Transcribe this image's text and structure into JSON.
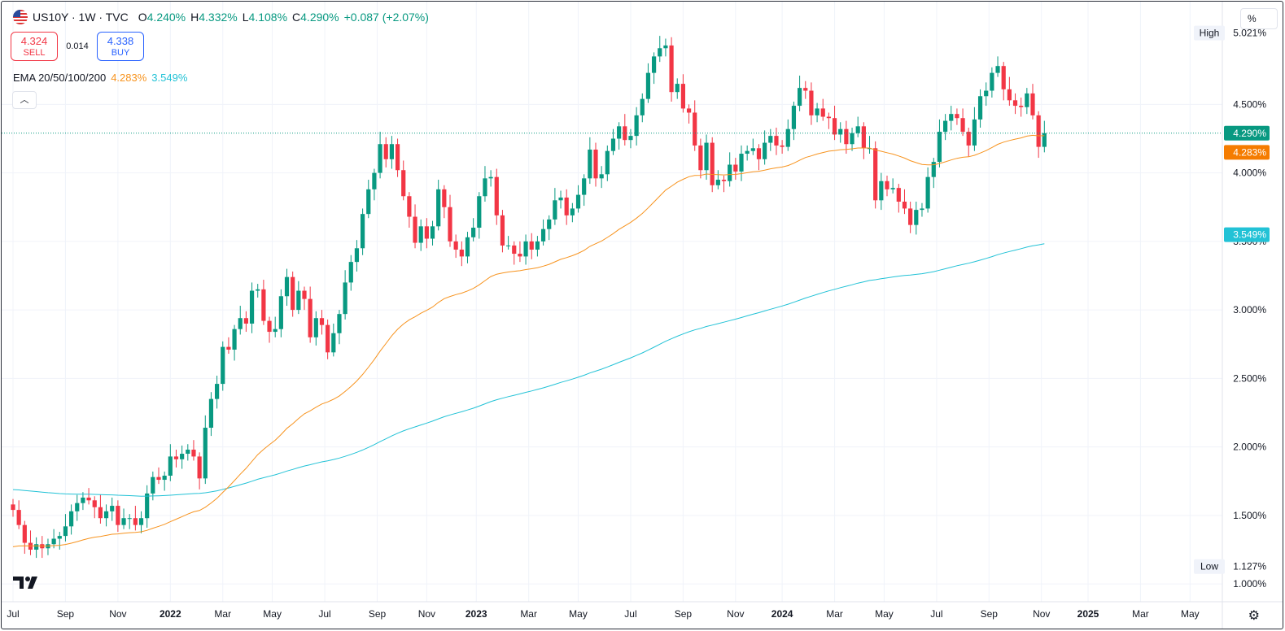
{
  "header": {
    "symbol": "US10Y · 1W · TVC",
    "open_key": "O",
    "open": "4.240%",
    "high_key": "H",
    "high": "4.332%",
    "low_key": "L",
    "low": "4.108%",
    "close_key": "C",
    "close": "4.290%",
    "change": "+0.087 (+2.07%)"
  },
  "trade": {
    "sell_price": "4.324",
    "sell_label": "SELL",
    "spread": "0.014",
    "buy_price": "4.338",
    "buy_label": "BUY"
  },
  "ema_label": "EMA 20/50/100/200",
  "ema_values": {
    "orange": "4.283%",
    "cyan": "3.549%"
  },
  "collapse_icon": "chevron-up-icon",
  "collapse_glyph": "︿",
  "scale_button": "%",
  "settings_glyph": "⚙",
  "colors": {
    "up": "#089981",
    "down": "#f23645",
    "ema_orange": "#f7931e",
    "ema_cyan": "#22c2d6",
    "last_price_bg": "#089981",
    "ema_orange_tag_bg": "#f57c00",
    "ema_cyan_tag_bg": "#22c2d6"
  },
  "chart_data": {
    "type": "candlestick",
    "ylim": [
      0.87,
      5.25
    ],
    "y_ticks": [
      "1.000%",
      "1.500%",
      "2.000%",
      "2.500%",
      "3.000%",
      "3.500%",
      "4.000%",
      "4.500%"
    ],
    "y_tick_values": [
      1.0,
      1.5,
      2.0,
      2.5,
      3.0,
      3.5,
      4.0,
      4.5
    ],
    "x_ticks": [
      {
        "label": "Jul",
        "t": 0
      },
      {
        "label": "Sep",
        "t": 9
      },
      {
        "label": "Nov",
        "t": 18
      },
      {
        "label": "2022",
        "t": 27,
        "bold": true
      },
      {
        "label": "Mar",
        "t": 36
      },
      {
        "label": "May",
        "t": 44.5
      },
      {
        "label": "Jul",
        "t": 53.5
      },
      {
        "label": "Sep",
        "t": 62.5
      },
      {
        "label": "Nov",
        "t": 71
      },
      {
        "label": "2023",
        "t": 79.5,
        "bold": true
      },
      {
        "label": "Mar",
        "t": 88.5
      },
      {
        "label": "May",
        "t": 97
      },
      {
        "label": "Jul",
        "t": 106
      },
      {
        "label": "Sep",
        "t": 115
      },
      {
        "label": "Nov",
        "t": 124
      },
      {
        "label": "2024",
        "t": 132,
        "bold": true
      },
      {
        "label": "Mar",
        "t": 141
      },
      {
        "label": "May",
        "t": 149.5
      },
      {
        "label": "Jul",
        "t": 158.5
      },
      {
        "label": "Sep",
        "t": 167.5
      },
      {
        "label": "Nov",
        "t": 176.5
      },
      {
        "label": "2025",
        "t": 184.5,
        "bold": true
      },
      {
        "label": "Mar",
        "t": 193.5
      },
      {
        "label": "May",
        "t": 202
      }
    ],
    "high_label": "High",
    "high_value": "5.021%",
    "low_label": "Low",
    "low_value": "1.127%",
    "last_price": 4.29,
    "last_price_label": "4.290%",
    "ema_orange_last": 4.283,
    "ema_orange_label": "4.283%",
    "ema_cyan_last": 3.549,
    "ema_cyan_label": "3.549%",
    "candles_close": [
      1.54,
      1.43,
      1.3,
      1.25,
      1.29,
      1.26,
      1.29,
      1.33,
      1.35,
      1.42,
      1.53,
      1.59,
      1.63,
      1.61,
      1.56,
      1.48,
      1.53,
      1.57,
      1.43,
      1.48,
      1.48,
      1.43,
      1.48,
      1.66,
      1.78,
      1.76,
      1.79,
      1.93,
      1.91,
      1.95,
      1.98,
      1.93,
      1.77,
      2.14,
      2.35,
      2.46,
      2.73,
      2.71,
      2.86,
      2.94,
      2.9,
      3.14,
      3.15,
      2.92,
      2.84,
      2.86,
      3.1,
      3.24,
      3.0,
      3.14,
      3.08,
      2.8,
      2.94,
      2.89,
      2.69,
      2.83,
      2.97,
      3.2,
      3.35,
      3.45,
      3.7,
      3.88,
      4.0,
      4.21,
      4.1,
      4.21,
      4.02,
      3.83,
      3.68,
      3.49,
      3.61,
      3.52,
      3.61,
      3.88,
      3.75,
      3.5,
      3.44,
      3.39,
      3.53,
      3.6,
      3.83,
      3.96,
      3.97,
      3.69,
      3.47,
      3.47,
      3.41,
      3.39,
      3.5,
      3.44,
      3.5,
      3.59,
      3.66,
      3.8,
      3.82,
      3.69,
      3.74,
      3.84,
      3.96,
      4.17,
      3.96,
      3.99,
      4.16,
      4.25,
      4.34,
      4.24,
      4.27,
      4.42,
      4.54,
      4.73,
      4.85,
      4.91,
      4.93,
      4.59,
      4.65,
      4.47,
      4.44,
      4.2,
      4.02,
      4.22,
      3.91,
      3.95,
      3.94,
      4.06,
      4.01,
      4.14,
      4.16,
      4.18,
      4.1,
      4.22,
      4.27,
      4.2,
      4.19,
      4.32,
      4.49,
      4.62,
      4.6,
      4.42,
      4.47,
      4.41,
      4.4,
      4.28,
      4.32,
      4.21,
      4.29,
      4.34,
      4.18,
      4.18,
      3.8,
      3.94,
      3.88,
      3.89,
      3.79,
      3.74,
      3.62,
      3.73,
      3.74,
      3.97,
      4.08,
      4.3,
      4.38,
      4.43,
      4.4,
      4.3,
      4.2,
      4.39,
      4.56,
      4.6,
      4.73,
      4.78,
      4.61,
      4.53,
      4.49,
      4.48,
      4.58,
      4.42,
      4.19,
      4.29
    ],
    "series": [
      {
        "name": "EMA 20/50/100/200"
      }
    ]
  }
}
